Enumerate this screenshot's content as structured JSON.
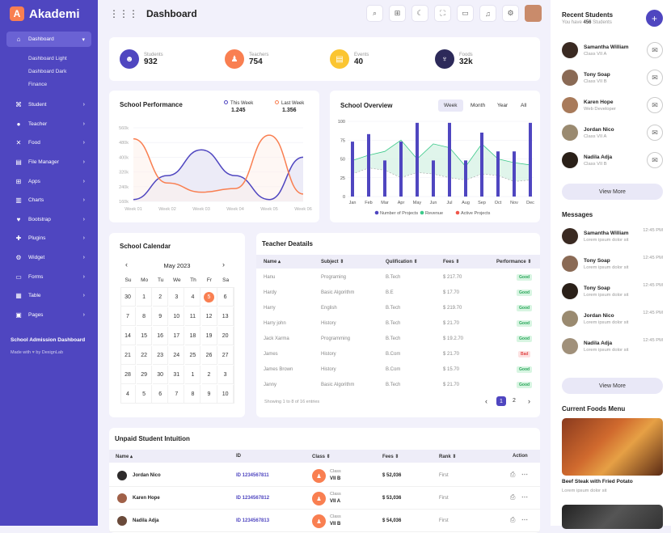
{
  "brand": {
    "logo": "A",
    "name": "Akademi"
  },
  "sidebar": {
    "items": [
      {
        "label": "Dashboard",
        "icon": "home-icon"
      },
      {
        "label": "Student",
        "icon": "cap-icon"
      },
      {
        "label": "Teacher",
        "icon": "person-icon"
      },
      {
        "label": "Food",
        "icon": "food-icon"
      },
      {
        "label": "File Manager",
        "icon": "folder-icon"
      },
      {
        "label": "Apps",
        "icon": "apps-icon"
      },
      {
        "label": "Charts",
        "icon": "chart-icon"
      },
      {
        "label": "Bootstrap",
        "icon": "heart-icon"
      },
      {
        "label": "Plugins",
        "icon": "puzzle-icon"
      },
      {
        "label": "Widget",
        "icon": "widget-icon"
      },
      {
        "label": "Forms",
        "icon": "form-icon"
      },
      {
        "label": "Table",
        "icon": "table-icon"
      },
      {
        "label": "Pages",
        "icon": "page-icon"
      }
    ],
    "subitems": [
      "Dashboard Light",
      "Dashboard Dark",
      "Finance"
    ],
    "footer_title": "School Admission Dashboard",
    "footer_made": "Made with",
    "footer_by": "by DexignLab"
  },
  "header": {
    "title": "Dashboard"
  },
  "stats": [
    {
      "label": "Students",
      "value": "932",
      "color": "#4f46c0"
    },
    {
      "label": "Teachers",
      "value": "754",
      "color": "#f97f51"
    },
    {
      "label": "Events",
      "value": "40",
      "color": "#fbc531"
    },
    {
      "label": "Foods",
      "value": "32k",
      "color": "#2d2a5a"
    }
  ],
  "performance": {
    "title": "School Performance",
    "legend": [
      {
        "label": "This Week",
        "value": "1.245",
        "color": "#4f46c0"
      },
      {
        "label": "Last Week",
        "value": "1.356",
        "color": "#f97f51"
      }
    ],
    "yticks": [
      "560k",
      "480k",
      "400k",
      "320k",
      "240k",
      "160k"
    ],
    "xticks": [
      "Week 01",
      "Week 02",
      "Week 03",
      "Week 04",
      "Week 05",
      "Week 06"
    ]
  },
  "chart_data": [
    {
      "type": "line",
      "title": "School Performance",
      "categories": [
        "Week 01",
        "Week 02",
        "Week 03",
        "Week 04",
        "Week 05",
        "Week 06"
      ],
      "series": [
        {
          "name": "This Week",
          "values": [
            170000,
            300000,
            440000,
            300000,
            170000,
            400000
          ]
        },
        {
          "name": "Last Week",
          "values": [
            500000,
            260000,
            210000,
            230000,
            520000,
            200000
          ]
        }
      ],
      "ylim": [
        160000,
        560000
      ]
    },
    {
      "type": "bar",
      "title": "School Overview",
      "categories": [
        "Jan",
        "Feb",
        "Mar",
        "Apr",
        "May",
        "Jun",
        "Jul",
        "Aug",
        "Sep",
        "Oct",
        "Nov",
        "Dec"
      ],
      "series": [
        {
          "name": "Number of Projects",
          "values": [
            73,
            83,
            48,
            73,
            98,
            48,
            98,
            48,
            85,
            60,
            60,
            98
          ]
        },
        {
          "name": "Revenue",
          "values": [
            48,
            55,
            60,
            75,
            50,
            70,
            65,
            40,
            70,
            50,
            45,
            42
          ]
        },
        {
          "name": "Active Projects",
          "values": [
            30,
            38,
            35,
            25,
            32,
            30,
            25,
            22,
            30,
            28,
            20,
            22
          ]
        }
      ],
      "ylim": [
        0,
        100
      ]
    }
  ],
  "overview": {
    "title": "School Overview",
    "tabs": [
      "Week",
      "Month",
      "Year",
      "All"
    ],
    "yticks": [
      "100",
      "75",
      "50",
      "25",
      "0"
    ],
    "legend": [
      "Number of Projects",
      "Revenue",
      "Active Projects"
    ],
    "colors": [
      "#4f46c0",
      "#3cc98a",
      "#f0574a"
    ]
  },
  "calendar": {
    "title": "School Calendar",
    "month": "May 2023",
    "days": [
      "Su",
      "Mo",
      "Tu",
      "We",
      "Th",
      "Fr",
      "Sa"
    ],
    "dates": [
      "30",
      "1",
      "2",
      "3",
      "4",
      "5",
      "6",
      "7",
      "8",
      "9",
      "10",
      "11",
      "12",
      "13",
      "14",
      "15",
      "16",
      "17",
      "18",
      "19",
      "20",
      "21",
      "22",
      "23",
      "24",
      "25",
      "26",
      "27",
      "28",
      "29",
      "30",
      "31",
      "1",
      "2",
      "3",
      "4",
      "5",
      "6",
      "7",
      "8",
      "9",
      "10"
    ],
    "highlight_index": 5
  },
  "teachers": {
    "title": "Teacher Deatails",
    "headers": [
      "Name",
      "Subject",
      "Qulification",
      "Fees",
      "Performance"
    ],
    "rows": [
      [
        "Hanu",
        "Programing",
        "B.Tech",
        "$ 217.70",
        "Good"
      ],
      [
        "Hardy",
        "Basic Algorithm",
        "B.E",
        "$ 17.70",
        "Good"
      ],
      [
        "Harry",
        "English",
        "B.Tech",
        "$ 219.70",
        "Good"
      ],
      [
        "Harry john",
        "History",
        "B.Tech",
        "$ 21.70",
        "Good"
      ],
      [
        "Jack Xarma",
        "Programming",
        "B.Tech",
        "$ 19.2.70",
        "Good"
      ],
      [
        "James",
        "History",
        "B.Com",
        "$ 21.70",
        "Bad"
      ],
      [
        "James Brown",
        "History",
        "B.Com",
        "$ 15.70",
        "Good"
      ],
      [
        "Janny",
        "Basic Algorithm",
        "B.Tech",
        "$ 21.70",
        "Good"
      ]
    ],
    "footer": "Showing 1 to 8 of 16 entries",
    "pages": [
      "1",
      "2"
    ]
  },
  "unpaid": {
    "title": "Unpaid Student Intuition",
    "headers": [
      "Name",
      "ID",
      "Class",
      "Fees",
      "Rank",
      "Action"
    ],
    "class_label": "Class",
    "rows": [
      {
        "name": "Jordan Nico",
        "id": "ID 1234567811",
        "class": "VII B",
        "fees": "$ 52,036",
        "rank": "First"
      },
      {
        "name": "Karen Hope",
        "id": "ID 1234567812",
        "class": "VII A",
        "fees": "$ 53,036",
        "rank": "First"
      },
      {
        "name": "Nadila Adja",
        "id": "ID 1234567813",
        "class": "VII B",
        "fees": "$ 54,036",
        "rank": "First"
      }
    ]
  },
  "recent": {
    "title": "Recent Students",
    "subtitle_pre": "You have ",
    "count": "456",
    "subtitle_post": " Students",
    "students": [
      {
        "name": "Samantha William",
        "sub": "Class VII A"
      },
      {
        "name": "Tony Soap",
        "sub": "Class VII B"
      },
      {
        "name": "Karen Hope",
        "sub": "Web Developer"
      },
      {
        "name": "Jordan Nico",
        "sub": "Class VII A"
      },
      {
        "name": "Nadila Adja",
        "sub": "Class VII B"
      }
    ],
    "more": "View More"
  },
  "messages": {
    "title": "Messages",
    "items": [
      {
        "name": "Samantha William",
        "text": "Lorem ipsum dolor sit",
        "time": "12:45 PM"
      },
      {
        "name": "Tony Soap",
        "text": "Lorem ipsum dolor sit",
        "time": "12:45 PM"
      },
      {
        "name": "Tony Soap",
        "text": "Lorem ipsum dolor sit",
        "time": "12:45 PM"
      },
      {
        "name": "Jordan Nico",
        "text": "Lorem ipsum dolor sit",
        "time": "12:45 PM"
      },
      {
        "name": "Nadila Adja",
        "text": "Lorem ipsum dolor sit",
        "time": "12:45 PM"
      }
    ],
    "more": "View More"
  },
  "foods": {
    "title": "Current Foods Menu",
    "item": "Beef Steak with Fried Potato",
    "text": "Lorem ipsum dolor sit"
  }
}
